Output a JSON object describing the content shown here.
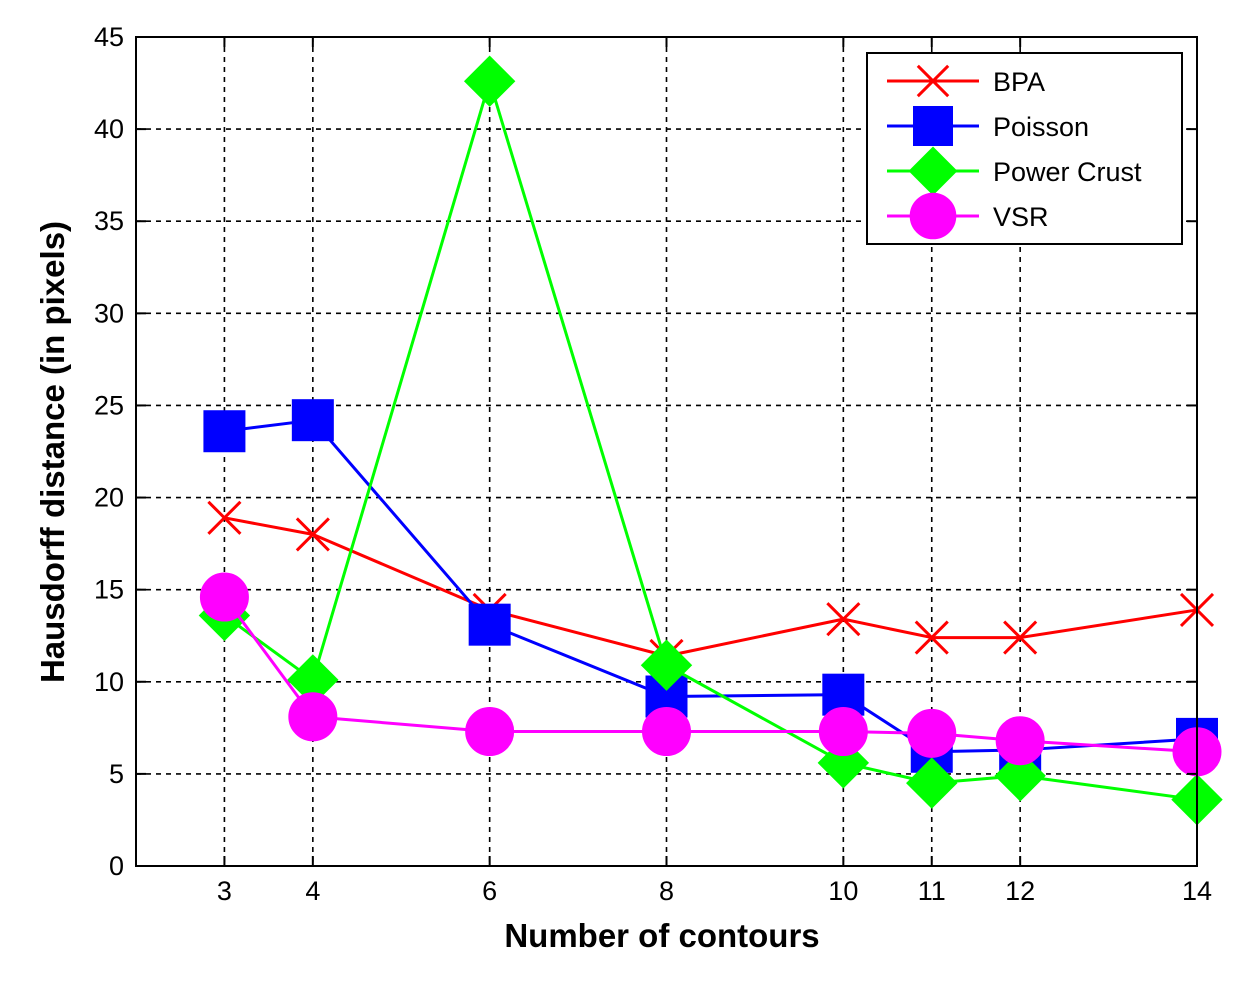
{
  "chart_data": {
    "type": "line",
    "title": "",
    "xlabel": "Number of contours",
    "ylabel": "Hausdorff distance (in pixels)",
    "x": [
      3,
      4,
      6,
      8,
      10,
      11,
      12,
      14
    ],
    "x_ticks": [
      3,
      4,
      6,
      8,
      10,
      11,
      12,
      14
    ],
    "xlim": [
      2,
      14
    ],
    "ylim": [
      0,
      45
    ],
    "y_ticks": [
      0,
      5,
      10,
      15,
      20,
      25,
      30,
      35,
      40,
      45
    ],
    "grid": true,
    "legend_position": "top-right",
    "series": [
      {
        "name": "BPA",
        "color": "#ff0000",
        "marker": "x",
        "values": [
          18.9,
          18.0,
          13.9,
          11.4,
          13.4,
          12.4,
          12.4,
          13.9
        ]
      },
      {
        "name": "Poisson",
        "color": "#0000ff",
        "marker": "square",
        "values": [
          23.6,
          24.2,
          13.1,
          9.2,
          9.3,
          6.2,
          6.3,
          6.9
        ]
      },
      {
        "name": "Power Crust",
        "color": "#00ff00",
        "marker": "diamond",
        "values": [
          13.6,
          10.1,
          42.6,
          10.9,
          5.6,
          4.5,
          4.9,
          3.6
        ]
      },
      {
        "name": "VSR",
        "color": "#ff00ff",
        "marker": "circle",
        "values": [
          14.6,
          8.1,
          7.3,
          7.3,
          7.3,
          7.2,
          6.8,
          6.2
        ]
      }
    ]
  }
}
